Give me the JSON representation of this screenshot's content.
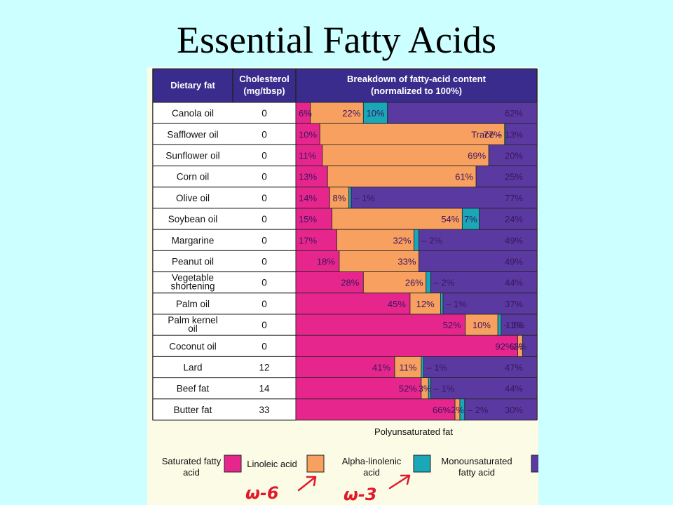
{
  "title": "Essential Fatty Acids",
  "chart_data": {
    "type": "bar",
    "orientation": "horizontal-stacked-100",
    "header": {
      "col1": "Dietary fat",
      "col2_line1": "Cholesterol",
      "col2_line2": "(mg/tbsp)",
      "col3_line1": "Breakdown of fatty-acid content",
      "col3_line2": "(normalized to 100%)"
    },
    "categories": [
      "Canola oil",
      "Safflower oil",
      "Sunflower oil",
      "Corn oil",
      "Olive oil",
      "Soybean oil",
      "Margarine",
      "Peanut oil",
      "Vegetable shortening",
      "Palm oil",
      "Palm kernel oil",
      "Coconut oil",
      "Lard",
      "Beef fat",
      "Butter fat"
    ],
    "category_lines": [
      [
        "Canola oil"
      ],
      [
        "Safflower oil"
      ],
      [
        "Sunflower oil"
      ],
      [
        "Corn oil"
      ],
      [
        "Olive oil"
      ],
      [
        "Soybean oil"
      ],
      [
        "Margarine"
      ],
      [
        "Peanut oil"
      ],
      [
        "Vegetable",
        "shortening"
      ],
      [
        "Palm oil"
      ],
      [
        "Palm kernel",
        "oil"
      ],
      [
        "Coconut oil"
      ],
      [
        "Lard"
      ],
      [
        "Beef fat"
      ],
      [
        "Butter fat"
      ]
    ],
    "cholesterol": [
      "0",
      "0",
      "0",
      "0",
      "0",
      "0",
      "0",
      "0",
      "0",
      "0",
      "0",
      "0",
      "12",
      "14",
      "33"
    ],
    "series": [
      {
        "name": "Saturated fatty acid",
        "color": "#e6268c",
        "values": [
          6,
          10,
          11,
          13,
          14,
          15,
          17,
          18,
          28,
          45,
          52,
          92,
          41,
          52,
          66
        ],
        "labels": [
          "6%",
          "10%",
          "11%",
          "13%",
          "14%",
          "15%",
          "17%",
          "18%",
          "28%",
          "45%",
          "52%",
          "92%",
          "41%",
          "52%",
          "66%"
        ]
      },
      {
        "name": "Linoleic acid",
        "color": "#f7a060",
        "values": [
          22,
          77,
          69,
          61,
          8,
          54,
          32,
          33,
          26,
          12,
          10,
          2,
          11,
          3,
          2
        ],
        "labels": [
          "22%",
          "77%",
          "69%",
          "61%",
          "8%",
          "54%",
          "32%",
          "33%",
          "26%",
          "12%",
          "10%",
          "2%",
          "11%",
          "3%",
          "2%"
        ]
      },
      {
        "name": "Alpha-linolenic acid",
        "color": "#1aa8b8",
        "values": [
          10,
          0.5,
          0,
          0,
          1,
          7,
          2,
          0,
          2,
          1,
          1,
          0,
          1,
          1,
          2
        ],
        "labels": [
          "10%",
          "Trace –",
          "",
          "",
          "– 1%",
          "7%",
          "– 2%",
          "",
          "– 2%",
          "– 1%",
          "– 1%",
          "",
          "– 1%",
          "– 1%",
          "– 2%"
        ]
      },
      {
        "name": "Monounsaturated fatty acid",
        "color": "#5a3aa0",
        "values": [
          62,
          13,
          20,
          25,
          77,
          24,
          49,
          49,
          44,
          37,
          11,
          6,
          47,
          44,
          30
        ],
        "labels": [
          "62%",
          "13%",
          "20%",
          "25%",
          "77%",
          "24%",
          "49%",
          "49%",
          "44%",
          "37%",
          "11%",
          "6%",
          "47%",
          "44%",
          "30%"
        ]
      }
    ],
    "legend": {
      "group_label": "Polyunsaturated fat",
      "items": [
        {
          "lines": [
            "Saturated fatty",
            "acid"
          ],
          "color": "#e6268c"
        },
        {
          "lines": [
            "Linoleic acid"
          ],
          "color": "#f7a060"
        },
        {
          "lines": [
            "Alpha-linolenic",
            "acid"
          ],
          "color": "#1aa8b8"
        },
        {
          "lines": [
            "Monounsaturated",
            "fatty acid"
          ],
          "color": "#5a3aa0"
        }
      ],
      "placement": "bottom"
    },
    "annotations": [
      "ω-6",
      "ω-3"
    ]
  }
}
